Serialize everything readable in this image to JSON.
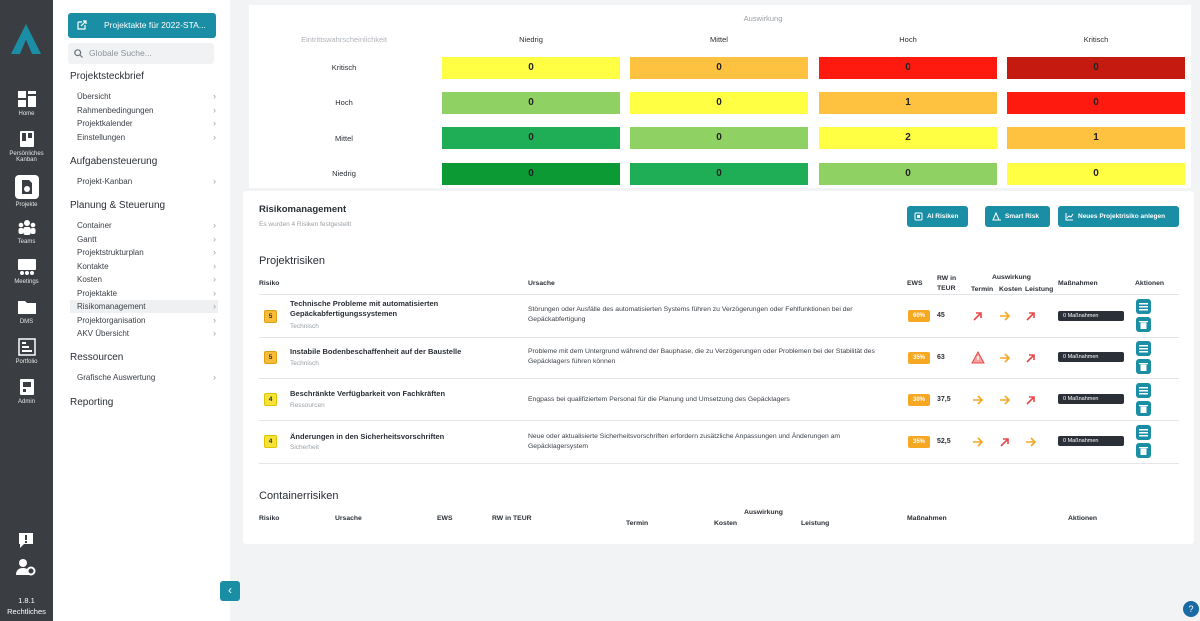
{
  "rail": {
    "items": [
      {
        "label": "Home",
        "icon": "home-icon"
      },
      {
        "label": "Persönliches Kanban",
        "icon": "kanban-icon"
      },
      {
        "label": "Projekte",
        "icon": "projects-icon"
      },
      {
        "label": "Teams",
        "icon": "teams-icon"
      },
      {
        "label": "Meetings",
        "icon": "meetings-icon"
      },
      {
        "label": "DMS",
        "icon": "folder-icon"
      },
      {
        "label": "Portfolio",
        "icon": "portfolio-icon"
      },
      {
        "label": "Admin",
        "icon": "admin-icon"
      }
    ],
    "version": "1.8.1",
    "legal": "Rechtliches"
  },
  "nav": {
    "project_button": "Projektakte für 2022-STA...",
    "search_placeholder": "Globale Suche...",
    "section1": "Projektsteckbrief",
    "s1_items": [
      "Übersicht",
      "Rahmenbedingungen",
      "Projektkalender",
      "Einstellungen"
    ],
    "section2": "Aufgabensteuerung",
    "s2_items": [
      "Projekt-Kanban"
    ],
    "section3": "Planung & Steuerung",
    "s3_items": [
      "Container",
      "Gantt",
      "Projektstrukturplan",
      "Kontakte",
      "Kosten",
      "Projektakte",
      "Risikomanagement",
      "Projektorganisation",
      "AKV Übersicht"
    ],
    "section4": "Ressourcen",
    "s4_items": [
      "Grafische Auswertung"
    ],
    "section5": "Reporting"
  },
  "matrix": {
    "title": "Auswirkung",
    "row_axis": "Eintrittswahrscheinlichkeit",
    "cols": [
      "Niedrig",
      "Mittel",
      "Hoch",
      "Kritisch"
    ],
    "rows": [
      {
        "label": "Kritisch",
        "values": [
          "0",
          "0",
          "0",
          "0"
        ]
      },
      {
        "label": "Hoch",
        "values": [
          "0",
          "0",
          "1",
          "0"
        ]
      },
      {
        "label": "Mittel",
        "values": [
          "0",
          "0",
          "2",
          "1"
        ]
      },
      {
        "label": "Niedrig",
        "values": [
          "0",
          "0",
          "0",
          "0"
        ]
      }
    ],
    "colors": [
      [
        "#ffff44",
        "#ffc140",
        "#ff1a10",
        "#c41a10"
      ],
      [
        "#8fd162",
        "#ffff44",
        "#ffc140",
        "#ff1a10"
      ],
      [
        "#1fae55",
        "#8fd162",
        "#ffff44",
        "#ffc140"
      ],
      [
        "#0c9a34",
        "#1fae55",
        "#8fd162",
        "#ffff44"
      ]
    ]
  },
  "risk": {
    "title": "Risikomanagement",
    "subtitle": "Es wurden 4 Risiken festgestellt",
    "btn_ai": "AI Risiken",
    "btn_smart": "Smart Risk",
    "btn_new": "Neues Projektrisiko anlegen",
    "section": "Projektrisiken",
    "headers": {
      "risiko": "Risiko",
      "ursache": "Ursache",
      "ews": "EWS",
      "rw": "RW in TEUR",
      "auswirkung": "Auswirkung",
      "termin": "Termin",
      "kosten": "Kosten",
      "leistung": "Leistung",
      "massnahmen": "Maßnahmen",
      "aktionen": "Aktionen"
    },
    "rows": [
      {
        "score": "5",
        "title": "Technische Probleme mit automatisierten Gepäckabfertigungssystemen",
        "category": "Technisch",
        "cause": "Störungen oder Ausfälle des automatisierten Systems führen zu Verzögerungen oder Fehlfunktionen bei der Gepäckabfertigung",
        "ews": "60%",
        "rw": "45",
        "impact": [
          "up-red",
          "right-orange",
          "up-red"
        ],
        "measures": "0 Maßnahmen"
      },
      {
        "score": "5",
        "title": "Instabile Bodenbeschaffenheit auf der Baustelle",
        "category": "Technisch",
        "cause": "Probleme mit dem Untergrund während der Bauphase, die zu Verzögerungen oder Problemen bei der Stabilität des Gepäcklagers führen können",
        "ews": "35%",
        "rw": "63",
        "impact": [
          "warn-red",
          "right-orange",
          "up-red"
        ],
        "measures": "0 Maßnahmen"
      },
      {
        "score": "4",
        "title": "Beschränkte Verfügbarkeit von Fachkräften",
        "category": "Ressourcen",
        "cause": "Engpass bei qualifiziertem Personal für die Planung und Umsetzung des Gepäcklagers",
        "ews": "30%",
        "rw": "37,5",
        "impact": [
          "right-orange",
          "right-orange",
          "up-red"
        ],
        "measures": "0 Maßnahmen"
      },
      {
        "score": "4",
        "title": "Änderungen in den Sicherheitsvorschriften",
        "category": "Sicherheit",
        "cause": "Neue oder aktualisierte Sicherheitsvorschriften erfordern zusätzliche Anpassungen und Änderungen am Gepäcklagersystem",
        "ews": "35%",
        "rw": "52,5",
        "impact": [
          "right-orange",
          "up-red",
          "right-orange"
        ],
        "measures": "0 Maßnahmen"
      }
    ],
    "container_section": "Containerrisiken",
    "container_headers": {
      "risiko": "Risiko",
      "ursache": "Ursache",
      "ews": "EWS",
      "rw": "RW in TEUR",
      "auswirkung": "Auswirkung",
      "termin": "Termin",
      "kosten": "Kosten",
      "leistung": "Leistung",
      "massnahmen": "Maßnahmen",
      "aktionen": "Aktionen"
    }
  },
  "colors": {
    "accent": "#1a8ea4",
    "rail": "#3a3d42",
    "ews": "#f7a823"
  }
}
